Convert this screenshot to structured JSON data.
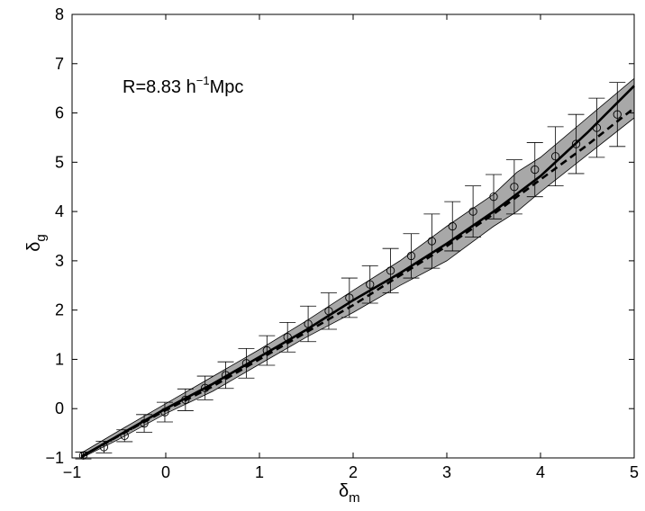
{
  "chart_data": {
    "type": "line",
    "title": "",
    "annotation": {
      "prefix": "R=8.83 h",
      "sup": "−1",
      "suffix": "Mpc"
    },
    "xlabel": {
      "symbol": "δ",
      "sub": "m"
    },
    "ylabel": {
      "symbol": "δ",
      "sub": "g"
    },
    "xlim": [
      -1,
      5
    ],
    "ylim": [
      -1,
      8
    ],
    "x_ticks": [
      -1,
      0,
      1,
      2,
      3,
      4,
      5
    ],
    "y_ticks": [
      -1,
      0,
      1,
      2,
      3,
      4,
      5,
      6,
      7,
      8
    ],
    "x_tick_labels": [
      "−1",
      "0",
      "1",
      "2",
      "3",
      "4",
      "5"
    ],
    "y_tick_labels": [
      "−1",
      "0",
      "1",
      "2",
      "3",
      "4",
      "5",
      "6",
      "7",
      "8"
    ],
    "grid": false,
    "legend": "none",
    "band": {
      "x": [
        -0.9,
        -0.5,
        0.0,
        0.5,
        1.0,
        1.5,
        2.0,
        2.5,
        3.0,
        3.5,
        3.75,
        4.0,
        4.5,
        5.0
      ],
      "lower": [
        -1.0,
        -0.62,
        -0.1,
        0.35,
        0.9,
        1.45,
        1.95,
        2.5,
        3.0,
        3.7,
        4.0,
        4.4,
        5.15,
        5.9
      ],
      "upper": [
        -0.9,
        -0.45,
        0.1,
        0.65,
        1.2,
        1.78,
        2.4,
        3.0,
        3.7,
        4.35,
        4.8,
        5.1,
        5.9,
        6.7
      ],
      "color": "#a8a8a8"
    },
    "series": [
      {
        "style": "solid",
        "color": "#000000",
        "x": [
          -0.9,
          -0.5,
          0.0,
          0.5,
          1.0,
          1.5,
          2.0,
          2.5,
          3.0,
          3.5,
          4.0,
          4.5,
          5.0
        ],
        "y": [
          -0.97,
          -0.54,
          0.0,
          0.5,
          1.05,
          1.6,
          2.2,
          2.75,
          3.35,
          4.0,
          4.72,
          5.6,
          6.55
        ]
      },
      {
        "style": "dashed",
        "color": "#000000",
        "x": [
          -0.9,
          -0.5,
          0.0,
          0.5,
          1.0,
          1.5,
          2.0,
          2.5,
          3.0,
          3.5,
          4.0,
          4.5,
          5.0
        ],
        "y": [
          -0.97,
          -0.55,
          -0.03,
          0.45,
          1.0,
          1.55,
          2.1,
          2.7,
          3.3,
          3.95,
          4.65,
          5.35,
          6.1
        ]
      },
      {
        "style": "markers-errorbars",
        "marker": "open-circle",
        "color": "#000000",
        "x": [
          -0.88,
          -0.66,
          -0.44,
          -0.23,
          -0.01,
          0.21,
          0.42,
          0.64,
          0.86,
          1.08,
          1.3,
          1.52,
          1.74,
          1.96,
          2.18,
          2.4,
          2.62,
          2.84,
          3.06,
          3.28,
          3.5,
          3.72,
          3.94,
          4.16,
          4.38,
          4.6,
          4.82
        ],
        "y": [
          -0.95,
          -0.78,
          -0.55,
          -0.3,
          -0.07,
          0.18,
          0.42,
          0.68,
          0.92,
          1.18,
          1.45,
          1.72,
          1.98,
          2.25,
          2.52,
          2.8,
          3.1,
          3.4,
          3.7,
          4.0,
          4.3,
          4.5,
          4.85,
          5.12,
          5.37,
          5.7,
          5.97
        ],
        "err": [
          0.07,
          0.12,
          0.12,
          0.18,
          0.2,
          0.22,
          0.24,
          0.27,
          0.3,
          0.3,
          0.3,
          0.36,
          0.37,
          0.4,
          0.38,
          0.45,
          0.45,
          0.55,
          0.5,
          0.52,
          0.45,
          0.55,
          0.55,
          0.6,
          0.6,
          0.6,
          0.65
        ]
      }
    ]
  }
}
